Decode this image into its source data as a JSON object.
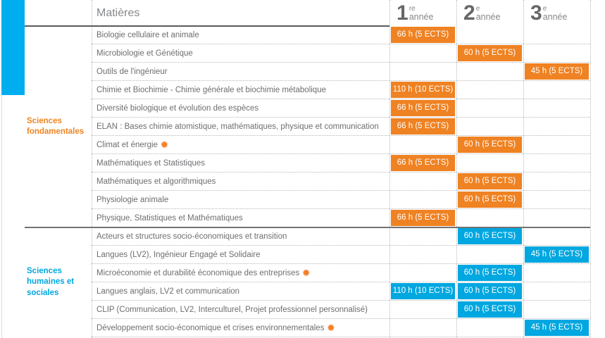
{
  "header": {
    "matieres_label": "Matières",
    "years": [
      {
        "digit": "1",
        "sup": "re",
        "word": "année"
      },
      {
        "digit": "2",
        "sup": "e",
        "word": "année"
      },
      {
        "digit": "3",
        "sup": "e",
        "word": "année"
      }
    ]
  },
  "icons": {
    "sun": "✹"
  },
  "colors": {
    "orange_badge": "#EF8222",
    "blue_badge": "#00A7E0",
    "cyan_bar": "#00AEEF",
    "subject_text": "#6D6E71",
    "header_text": "#85878A"
  },
  "sections": [
    {
      "name": "Sciences fondamentales",
      "theme": "orange",
      "rows": [
        {
          "label": "Biologie cellulaire et animale",
          "sun": false,
          "badges": {
            "y1": "66 h (5 ECTS)"
          }
        },
        {
          "label": "Microbiologie et Génétique",
          "sun": false,
          "badges": {
            "y2": "60 h (5 ECTS)"
          }
        },
        {
          "label": "Outils de l'ingénieur",
          "sun": false,
          "badges": {
            "y3": "45 h (5 ECTS)"
          }
        },
        {
          "label": "Chimie et Biochimie - Chimie générale et biochimie métabolique",
          "sun": false,
          "badges": {
            "y1": "110 h (10 ECTS)"
          }
        },
        {
          "label": "Diversité biologique et évolution des espèces",
          "sun": false,
          "badges": {
            "y1": "66 h (5 ECTS)"
          }
        },
        {
          "label": "ELAN : Bases chimie atomistique, mathématiques, physique et communication",
          "sun": false,
          "badges": {
            "y1": "66 h (5 ECTS)"
          }
        },
        {
          "label": "Climat et énergie",
          "sun": true,
          "badges": {
            "y2": "60 h (5 ECTS)"
          }
        },
        {
          "label": "Mathématiques et Statistiques",
          "sun": false,
          "badges": {
            "y1": "66 h (5 ECTS)"
          }
        },
        {
          "label": "Mathématiques et algorithmiques",
          "sun": false,
          "badges": {
            "y2": "60 h (5 ECTS)"
          }
        },
        {
          "label": "Physiologie animale",
          "sun": false,
          "badges": {
            "y2": "60 h (5 ECTS)"
          }
        },
        {
          "label": "Physique, Statistiques et Mathématiques",
          "sun": false,
          "badges": {
            "y1": "66 h (5 ECTS)"
          }
        }
      ]
    },
    {
      "name": "Sciences humaines et sociales",
      "theme": "blue",
      "rows": [
        {
          "label": "Acteurs et structures socio-économiques et transition",
          "sun": false,
          "badges": {
            "y2": "60 h (5 ECTS)"
          }
        },
        {
          "label": "Langues (LV2), Ingénieur Engagé et Solidaire",
          "sun": false,
          "badges": {
            "y3": "45 h (5 ECTS)"
          }
        },
        {
          "label": "Microéconomie et durabilité économique des entreprises",
          "sun": true,
          "badges": {
            "y2": "60 h (5 ECTS)"
          }
        },
        {
          "label": "Langues anglais, LV2 et communication",
          "sun": false,
          "badges": {
            "y1": "110 h (10 ECTS)",
            "y2": "60 h (5 ECTS)"
          }
        },
        {
          "label": "CLIP (Communication, LV2, Interculturel, Projet professionnel personnalisé)",
          "sun": false,
          "badges": {
            "y2": "60 h (5 ECTS)"
          }
        },
        {
          "label": "Développement socio-économique et crises environnementales",
          "sun": true,
          "badges": {
            "y3": "45 h (5 ECTS)"
          }
        }
      ]
    }
  ]
}
